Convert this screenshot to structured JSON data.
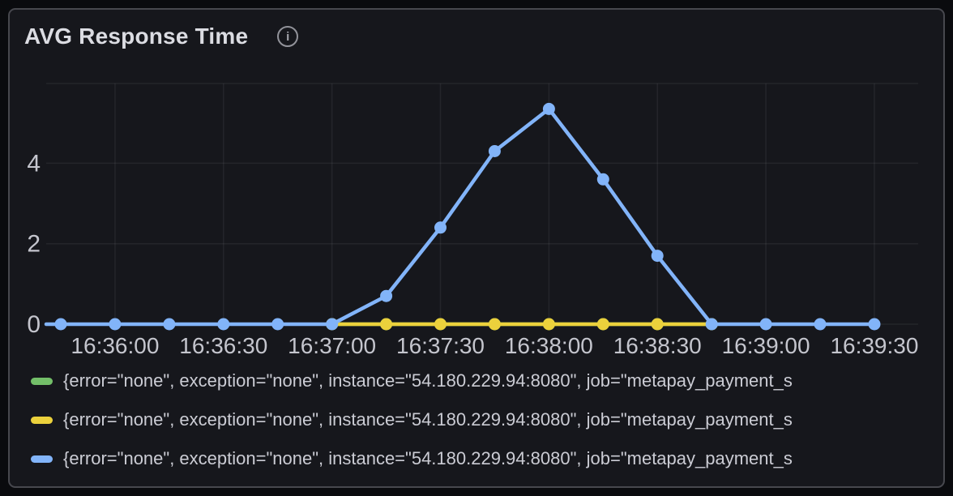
{
  "header": {
    "title": "AVG Response Time",
    "info_icon_glyph": "i"
  },
  "colors": {
    "panel_background": "#16171c",
    "panel_border": "#47484e",
    "grid": "rgba(204,204,220,0.08)",
    "tick_text": "#c4c5cd",
    "green": "#73bf69",
    "yellow": "#ebd13c",
    "blue": "#82b4f9"
  },
  "chart_data": {
    "type": "line",
    "title": "AVG Response Time",
    "x_interval_seconds": 15,
    "x": [
      "16:35:45",
      "16:36:00",
      "16:36:15",
      "16:36:30",
      "16:36:45",
      "16:37:00",
      "16:37:15",
      "16:37:30",
      "16:37:45",
      "16:38:00",
      "16:38:15",
      "16:38:30",
      "16:38:45",
      "16:39:00",
      "16:39:15",
      "16:39:30"
    ],
    "x_tick_labels": [
      "16:36:00",
      "16:36:30",
      "16:37:00",
      "16:37:30",
      "16:38:00",
      "16:38:30",
      "16:39:00",
      "16:39:30"
    ],
    "x_tick_indices": [
      1,
      3,
      5,
      7,
      9,
      11,
      13,
      15
    ],
    "y_ticks": [
      0,
      2,
      4
    ],
    "ylim": [
      0,
      6
    ],
    "grid": true,
    "legend_position": "bottom",
    "series": [
      {
        "label": "{error=\"none\", exception=\"none\", instance=\"54.180.229.94:8080\", job=\"metapay_payment_s",
        "color": "#73bf69",
        "values": [
          null,
          null,
          null,
          null,
          null,
          0,
          0,
          0,
          0,
          0,
          0,
          0,
          0,
          null,
          null,
          null
        ],
        "extend_left": false
      },
      {
        "label": "{error=\"none\", exception=\"none\", instance=\"54.180.229.94:8080\", job=\"metapay_payment_s",
        "color": "#ebd13c",
        "values": [
          null,
          null,
          null,
          null,
          null,
          0,
          0,
          0,
          0,
          0,
          0,
          0,
          0,
          null,
          null,
          null
        ],
        "extend_left": false
      },
      {
        "label": "{error=\"none\", exception=\"none\", instance=\"54.180.229.94:8080\", job=\"metapay_payment_s",
        "color": "#82b4f9",
        "values": [
          0,
          0,
          0,
          0,
          0,
          0,
          0.7,
          2.4,
          4.3,
          5.35,
          3.6,
          1.7,
          0,
          0,
          0,
          0
        ],
        "extend_left": true
      }
    ]
  }
}
